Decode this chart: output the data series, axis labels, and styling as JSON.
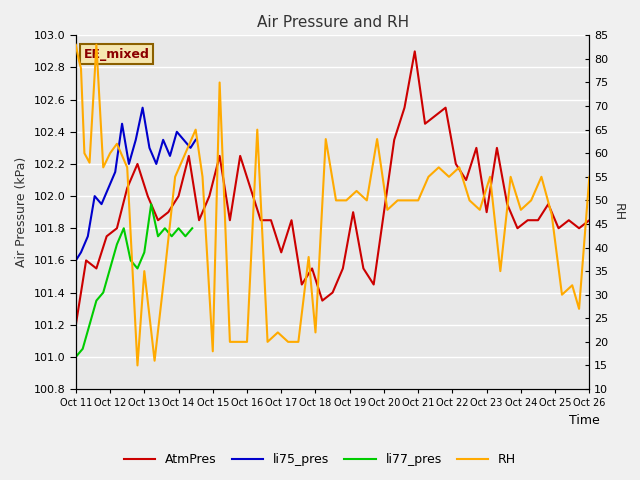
{
  "title": "Air Pressure and RH",
  "xlabel": "Time",
  "ylabel_left": "Air Pressure (kPa)",
  "ylabel_right": "RH",
  "annotation": "EE_mixed",
  "ylim_left": [
    100.8,
    103.0
  ],
  "ylim_right": [
    10,
    85
  ],
  "yticks_left": [
    100.8,
    101.0,
    101.2,
    101.4,
    101.6,
    101.8,
    102.0,
    102.2,
    102.4,
    102.6,
    102.8,
    103.0
  ],
  "yticks_right": [
    10,
    15,
    20,
    25,
    30,
    35,
    40,
    45,
    50,
    55,
    60,
    65,
    70,
    75,
    80,
    85
  ],
  "xtick_labels": [
    "Oct 11",
    "Oct 12",
    "Oct 13",
    "Oct 14",
    "Oct 15",
    "Oct 16",
    "Oct 17",
    "Oct 18",
    "Oct 19",
    "Oct 20",
    "Oct 21",
    "Oct 22",
    "Oct 23",
    "Oct 24",
    "Oct 25",
    "Oct 26"
  ],
  "fig_bg_color": "#f0f0f0",
  "plot_bg_color": "#e8e8e8",
  "grid_color": "#ffffff",
  "colors": {
    "AtmPres": "#cc0000",
    "li75_pres": "#0000cc",
    "li77_pres": "#00cc00",
    "RH": "#ffaa00"
  },
  "AtmPres_x": [
    11.0,
    11.3,
    11.6,
    11.9,
    12.2,
    12.5,
    12.8,
    13.1,
    13.4,
    13.7,
    14.0,
    14.3,
    14.6,
    14.9,
    15.2,
    15.5,
    15.8,
    16.1,
    16.4,
    16.7,
    17.0,
    17.3,
    17.6,
    17.9,
    18.2,
    18.5,
    18.8,
    19.1,
    19.4,
    19.7,
    20.0,
    20.3,
    20.6,
    20.9,
    21.2,
    21.5,
    21.8,
    22.1,
    22.4,
    22.7,
    23.0,
    23.3,
    23.6,
    23.9,
    24.2,
    24.5,
    24.8,
    25.1,
    25.4,
    25.7,
    26.0
  ],
  "AtmPres_y": [
    101.2,
    101.6,
    101.55,
    101.75,
    101.8,
    102.05,
    102.2,
    102.0,
    101.85,
    101.9,
    102.0,
    102.25,
    101.85,
    102.0,
    102.25,
    101.85,
    102.25,
    102.05,
    101.85,
    101.85,
    101.65,
    101.85,
    101.45,
    101.55,
    101.35,
    101.4,
    101.55,
    101.9,
    101.55,
    101.45,
    101.9,
    102.35,
    102.55,
    102.9,
    102.45,
    102.5,
    102.55,
    102.2,
    102.1,
    102.3,
    101.9,
    102.3,
    101.95,
    101.8,
    101.85,
    101.85,
    101.95,
    101.8,
    101.85,
    101.8,
    101.85
  ],
  "li75_pres_x": [
    11.0,
    11.15,
    11.35,
    11.55,
    11.75,
    11.95,
    12.15,
    12.35,
    12.55,
    12.75,
    12.95,
    13.15,
    13.35,
    13.55,
    13.75,
    13.95,
    14.15,
    14.35,
    14.5
  ],
  "li75_pres_y": [
    101.6,
    101.65,
    101.75,
    102.0,
    101.95,
    102.05,
    102.15,
    102.45,
    102.2,
    102.35,
    102.55,
    102.3,
    102.2,
    102.35,
    102.25,
    102.4,
    102.35,
    102.3,
    102.35
  ],
  "li77_pres_x": [
    11.0,
    11.2,
    11.4,
    11.6,
    11.8,
    12.0,
    12.2,
    12.4,
    12.6,
    12.8,
    13.0,
    13.2,
    13.4,
    13.6,
    13.8,
    14.0,
    14.2,
    14.4
  ],
  "li77_pres_y": [
    101.0,
    101.05,
    101.2,
    101.35,
    101.4,
    101.55,
    101.7,
    101.8,
    101.6,
    101.55,
    101.65,
    101.95,
    101.75,
    101.8,
    101.75,
    101.8,
    101.75,
    101.8
  ],
  "RH_x": [
    11.0,
    11.08,
    11.15,
    11.25,
    11.4,
    11.6,
    11.8,
    12.0,
    12.2,
    12.5,
    12.8,
    13.0,
    13.3,
    13.6,
    13.9,
    14.2,
    14.5,
    14.7,
    15.0,
    15.2,
    15.5,
    15.7,
    16.0,
    16.3,
    16.6,
    16.9,
    17.2,
    17.5,
    17.8,
    18.0,
    18.3,
    18.6,
    18.9,
    19.2,
    19.5,
    19.8,
    20.1,
    20.4,
    20.7,
    21.0,
    21.3,
    21.6,
    21.9,
    22.2,
    22.5,
    22.8,
    23.1,
    23.4,
    23.7,
    24.0,
    24.3,
    24.6,
    24.9,
    25.2,
    25.5,
    25.7,
    26.0
  ],
  "RH_y": [
    83,
    80,
    78,
    60,
    58,
    83,
    57,
    60,
    62,
    57,
    15,
    35,
    16,
    35,
    55,
    60,
    65,
    55,
    18,
    75,
    20,
    20,
    20,
    65,
    20,
    22,
    20,
    20,
    38,
    22,
    63,
    50,
    50,
    52,
    50,
    63,
    48,
    50,
    50,
    50,
    55,
    57,
    55,
    57,
    50,
    48,
    55,
    35,
    55,
    48,
    50,
    55,
    47,
    30,
    32,
    27,
    55
  ]
}
